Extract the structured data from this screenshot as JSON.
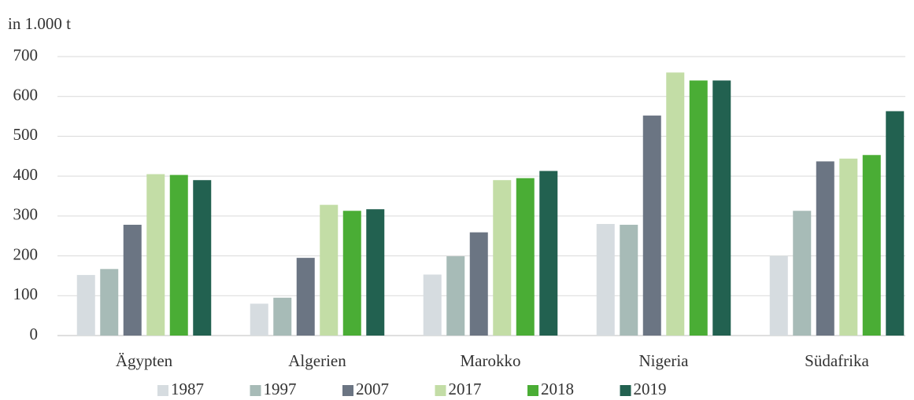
{
  "chart_data": {
    "type": "bar",
    "y_label": "in 1.000 t",
    "categories": [
      "Ägypten",
      "Algerien",
      "Marokko",
      "Nigeria",
      "Südafrika"
    ],
    "series": [
      {
        "name": "1987",
        "color": "#d6dce0",
        "values": [
          152,
          80,
          153,
          280,
          200
        ]
      },
      {
        "name": "1997",
        "color": "#a7bbb7",
        "values": [
          167,
          95,
          199,
          278,
          313
        ]
      },
      {
        "name": "2007",
        "color": "#6b7583",
        "values": [
          278,
          195,
          259,
          552,
          437
        ]
      },
      {
        "name": "2017",
        "color": "#c3dda6",
        "values": [
          405,
          328,
          390,
          660,
          444
        ]
      },
      {
        "name": "2018",
        "color": "#4aad35",
        "values": [
          403,
          313,
          395,
          640,
          453
        ]
      },
      {
        "name": "2019",
        "color": "#226150",
        "values": [
          390,
          317,
          413,
          640,
          563
        ]
      }
    ],
    "ylim": [
      0,
      700
    ],
    "yticks": [
      0,
      100,
      200,
      300,
      400,
      500,
      600,
      700
    ],
    "grid": true,
    "legend": "bottom"
  }
}
